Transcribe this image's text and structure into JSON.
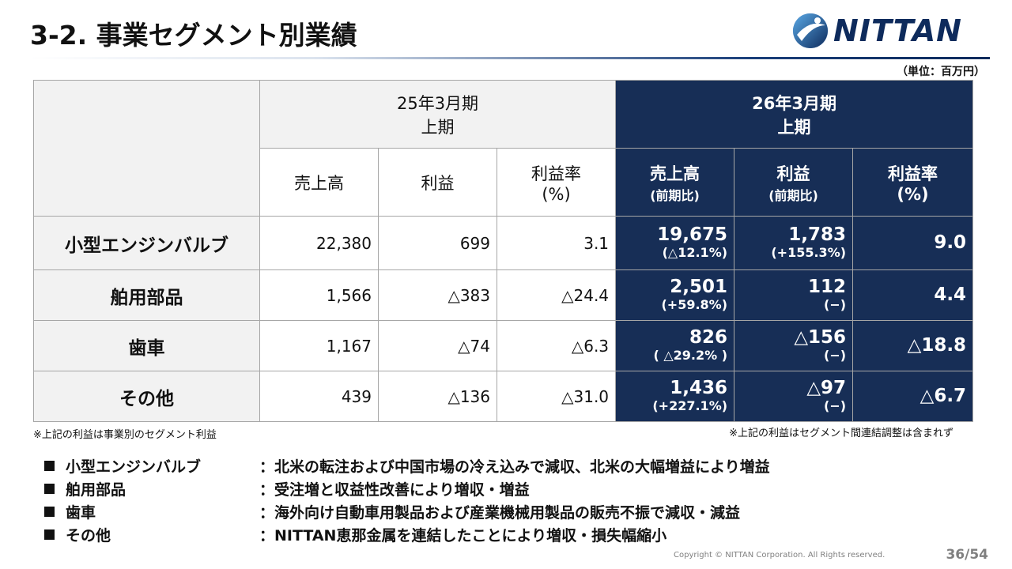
{
  "title": "3-2. 事業セグメント別業績",
  "logo": {
    "text": "NITTAN",
    "color": "#0e2b5c"
  },
  "unit": "（単位：百万円）",
  "table": {
    "prev_period": {
      "line1": "25年3月期",
      "line2": "上期"
    },
    "curr_period": {
      "line1": "26年3月期",
      "line2": "上期"
    },
    "prev_cols": {
      "sales": "売上高",
      "profit": "利益",
      "margin_1": "利益率",
      "margin_2": "(%)"
    },
    "curr_cols": {
      "sales": "売上高",
      "sales_sub": "(前期比)",
      "profit": "利益",
      "profit_sub": "(前期比)",
      "margin_1": "利益率",
      "margin_2": "(%)"
    },
    "rows": [
      {
        "segment": "小型エンジンバルブ",
        "prev_sales": "22,380",
        "prev_profit": "699",
        "prev_margin": "3.1",
        "curr_sales": "19,675",
        "curr_sales_yoy": "(△12.1%)",
        "curr_profit": "1,783",
        "curr_profit_yoy": "(+155.3%)",
        "curr_margin": "9.0"
      },
      {
        "segment": "舶用部品",
        "prev_sales": "1,566",
        "prev_profit": "△383",
        "prev_margin": "△24.4",
        "curr_sales": "2,501",
        "curr_sales_yoy": "(+59.8%)",
        "curr_profit": "112",
        "curr_profit_yoy": "(−)",
        "curr_margin": "4.4"
      },
      {
        "segment": "歯車",
        "prev_sales": "1,167",
        "prev_profit": "△74",
        "prev_margin": "△6.3",
        "curr_sales": "826",
        "curr_sales_yoy": "( △29.2% )",
        "curr_profit": "△156",
        "curr_profit_yoy": "(−)",
        "curr_margin": "△18.8"
      },
      {
        "segment": "その他",
        "prev_sales": "439",
        "prev_profit": "△136",
        "prev_margin": "△31.0",
        "curr_sales": "1,436",
        "curr_sales_yoy": "(+227.1%)",
        "curr_profit": "△97",
        "curr_profit_yoy": "(−)",
        "curr_margin": "△6.7"
      }
    ]
  },
  "notes": {
    "left": "※上記の利益は事業別のセグメント利益",
    "right": "※上記の利益はセグメント間連結調整は含まれず"
  },
  "bullets": [
    {
      "name": "小型エンジンバルブ",
      "desc": "：北米の転注および中国市場の冷え込みで減収、北米の大幅増益により増益"
    },
    {
      "name": "舶用部品",
      "desc": "：受注増と収益性改善により増収・増益"
    },
    {
      "name": "歯車",
      "desc": "：海外向け自動車用製品および産業機械用製品の販売不振で減収・減益"
    },
    {
      "name": "その他",
      "desc": "：NITTAN恵那金属を連結したことにより増収・損失幅縮小"
    }
  ],
  "footer": {
    "copyright": "Copyright © NITTAN Corporation. All Rights reserved.",
    "page": "36/54"
  },
  "colors": {
    "dark_navy": "#172e56",
    "light_gray": "#f2f2f2"
  }
}
